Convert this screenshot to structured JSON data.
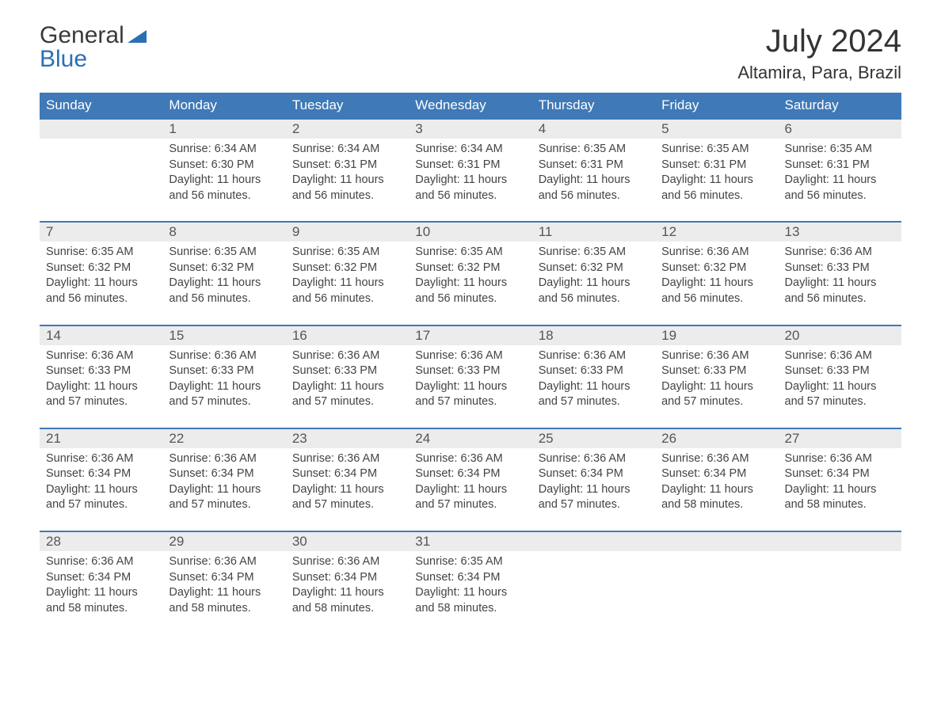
{
  "brand": {
    "line1": "General",
    "line2": "Blue"
  },
  "title": "July 2024",
  "location": "Altamira, Para, Brazil",
  "colors": {
    "header_bg": "#3f79b7",
    "header_text": "#ffffff",
    "daynum_bg": "#ececec",
    "row_divider": "#3f79b7",
    "body_text": "#444444",
    "page_bg": "#ffffff",
    "logo_blue": "#2b6fb3"
  },
  "layout": {
    "columns": 7,
    "font_family": "Arial",
    "title_fontsize_pt": 30,
    "location_fontsize_pt": 17,
    "header_fontsize_pt": 13,
    "daynum_fontsize_pt": 13,
    "body_fontsize_pt": 11
  },
  "day_headers": [
    "Sunday",
    "Monday",
    "Tuesday",
    "Wednesday",
    "Thursday",
    "Friday",
    "Saturday"
  ],
  "weeks": [
    [
      null,
      {
        "n": "1",
        "sunrise": "6:34 AM",
        "sunset": "6:30 PM",
        "daylight": "11 hours and 56 minutes."
      },
      {
        "n": "2",
        "sunrise": "6:34 AM",
        "sunset": "6:31 PM",
        "daylight": "11 hours and 56 minutes."
      },
      {
        "n": "3",
        "sunrise": "6:34 AM",
        "sunset": "6:31 PM",
        "daylight": "11 hours and 56 minutes."
      },
      {
        "n": "4",
        "sunrise": "6:35 AM",
        "sunset": "6:31 PM",
        "daylight": "11 hours and 56 minutes."
      },
      {
        "n": "5",
        "sunrise": "6:35 AM",
        "sunset": "6:31 PM",
        "daylight": "11 hours and 56 minutes."
      },
      {
        "n": "6",
        "sunrise": "6:35 AM",
        "sunset": "6:31 PM",
        "daylight": "11 hours and 56 minutes."
      }
    ],
    [
      {
        "n": "7",
        "sunrise": "6:35 AM",
        "sunset": "6:32 PM",
        "daylight": "11 hours and 56 minutes."
      },
      {
        "n": "8",
        "sunrise": "6:35 AM",
        "sunset": "6:32 PM",
        "daylight": "11 hours and 56 minutes."
      },
      {
        "n": "9",
        "sunrise": "6:35 AM",
        "sunset": "6:32 PM",
        "daylight": "11 hours and 56 minutes."
      },
      {
        "n": "10",
        "sunrise": "6:35 AM",
        "sunset": "6:32 PM",
        "daylight": "11 hours and 56 minutes."
      },
      {
        "n": "11",
        "sunrise": "6:35 AM",
        "sunset": "6:32 PM",
        "daylight": "11 hours and 56 minutes."
      },
      {
        "n": "12",
        "sunrise": "6:36 AM",
        "sunset": "6:32 PM",
        "daylight": "11 hours and 56 minutes."
      },
      {
        "n": "13",
        "sunrise": "6:36 AM",
        "sunset": "6:33 PM",
        "daylight": "11 hours and 56 minutes."
      }
    ],
    [
      {
        "n": "14",
        "sunrise": "6:36 AM",
        "sunset": "6:33 PM",
        "daylight": "11 hours and 57 minutes."
      },
      {
        "n": "15",
        "sunrise": "6:36 AM",
        "sunset": "6:33 PM",
        "daylight": "11 hours and 57 minutes."
      },
      {
        "n": "16",
        "sunrise": "6:36 AM",
        "sunset": "6:33 PM",
        "daylight": "11 hours and 57 minutes."
      },
      {
        "n": "17",
        "sunrise": "6:36 AM",
        "sunset": "6:33 PM",
        "daylight": "11 hours and 57 minutes."
      },
      {
        "n": "18",
        "sunrise": "6:36 AM",
        "sunset": "6:33 PM",
        "daylight": "11 hours and 57 minutes."
      },
      {
        "n": "19",
        "sunrise": "6:36 AM",
        "sunset": "6:33 PM",
        "daylight": "11 hours and 57 minutes."
      },
      {
        "n": "20",
        "sunrise": "6:36 AM",
        "sunset": "6:33 PM",
        "daylight": "11 hours and 57 minutes."
      }
    ],
    [
      {
        "n": "21",
        "sunrise": "6:36 AM",
        "sunset": "6:34 PM",
        "daylight": "11 hours and 57 minutes."
      },
      {
        "n": "22",
        "sunrise": "6:36 AM",
        "sunset": "6:34 PM",
        "daylight": "11 hours and 57 minutes."
      },
      {
        "n": "23",
        "sunrise": "6:36 AM",
        "sunset": "6:34 PM",
        "daylight": "11 hours and 57 minutes."
      },
      {
        "n": "24",
        "sunrise": "6:36 AM",
        "sunset": "6:34 PM",
        "daylight": "11 hours and 57 minutes."
      },
      {
        "n": "25",
        "sunrise": "6:36 AM",
        "sunset": "6:34 PM",
        "daylight": "11 hours and 57 minutes."
      },
      {
        "n": "26",
        "sunrise": "6:36 AM",
        "sunset": "6:34 PM",
        "daylight": "11 hours and 58 minutes."
      },
      {
        "n": "27",
        "sunrise": "6:36 AM",
        "sunset": "6:34 PM",
        "daylight": "11 hours and 58 minutes."
      }
    ],
    [
      {
        "n": "28",
        "sunrise": "6:36 AM",
        "sunset": "6:34 PM",
        "daylight": "11 hours and 58 minutes."
      },
      {
        "n": "29",
        "sunrise": "6:36 AM",
        "sunset": "6:34 PM",
        "daylight": "11 hours and 58 minutes."
      },
      {
        "n": "30",
        "sunrise": "6:36 AM",
        "sunset": "6:34 PM",
        "daylight": "11 hours and 58 minutes."
      },
      {
        "n": "31",
        "sunrise": "6:35 AM",
        "sunset": "6:34 PM",
        "daylight": "11 hours and 58 minutes."
      },
      null,
      null,
      null
    ]
  ],
  "labels": {
    "sunrise": "Sunrise:",
    "sunset": "Sunset:",
    "daylight": "Daylight:"
  }
}
